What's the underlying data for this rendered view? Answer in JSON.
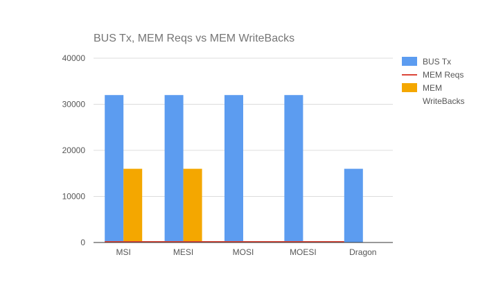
{
  "chart_data": {
    "type": "bar",
    "title": "BUS Tx, MEM Reqs vs MEM WriteBacks",
    "categories": [
      "MSI",
      "MESI",
      "MOSI",
      "MOESI",
      "Dragon"
    ],
    "ylim": [
      0,
      40000
    ],
    "yticks": [
      "0",
      "10000",
      "20000",
      "30000",
      "40000"
    ],
    "grid": true,
    "legend_position": "right",
    "series": [
      {
        "name": "BUS Tx",
        "kind": "bar",
        "color": "#5c9cf0",
        "values": [
          32000,
          32000,
          32000,
          32000,
          16000
        ]
      },
      {
        "name": "MEM Reqs",
        "kind": "line",
        "color": "#db4437",
        "values": [
          0,
          0,
          0,
          0,
          0
        ]
      },
      {
        "name": "MEM WriteBacks",
        "kind": "bar",
        "color": "#f4a700",
        "values": [
          16000,
          16000,
          0,
          0,
          0
        ]
      }
    ],
    "legend_lines": [
      [
        "BUS Tx"
      ],
      [
        "MEM Reqs"
      ],
      [
        "MEM",
        "WriteBacks"
      ]
    ]
  }
}
